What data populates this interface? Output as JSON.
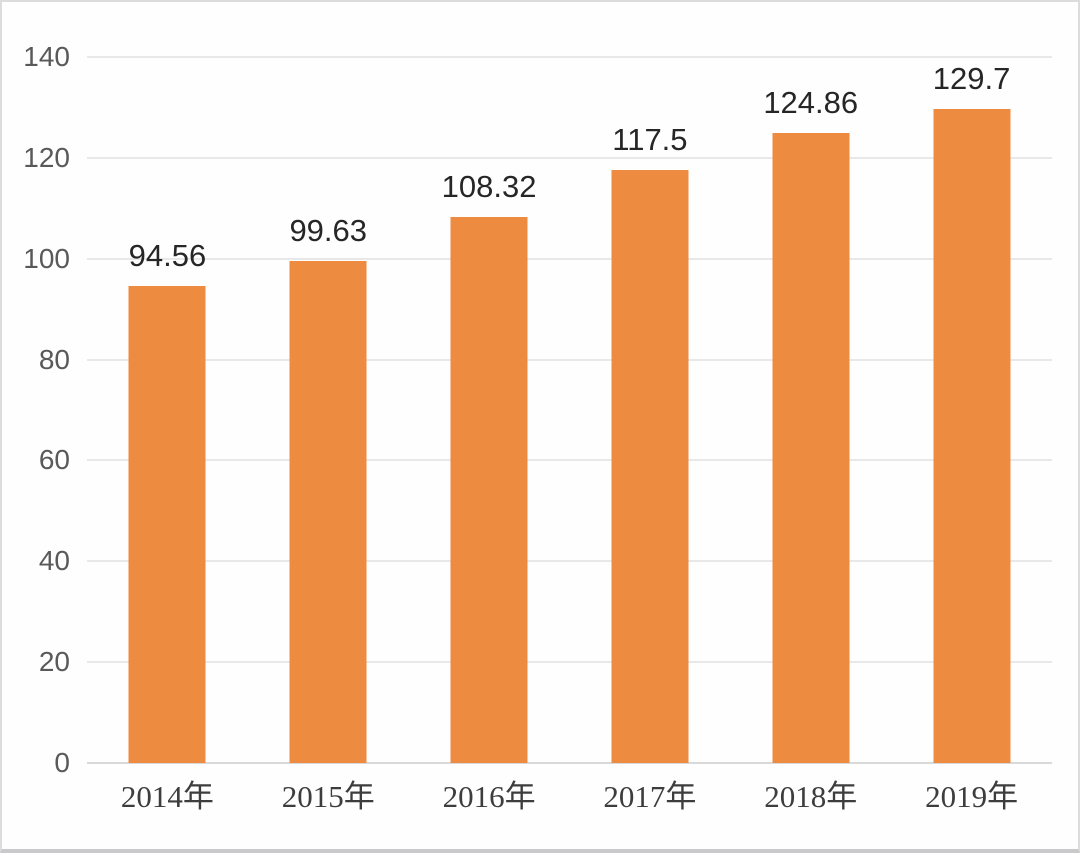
{
  "chart_data": {
    "type": "bar",
    "title": "",
    "xlabel": "",
    "ylabel": "",
    "categories": [
      "2014年",
      "2015年",
      "2016年",
      "2017年",
      "2018年",
      "2019年"
    ],
    "values": [
      94.56,
      99.63,
      108.32,
      117.5,
      124.86,
      129.7
    ],
    "value_labels": [
      "94.56",
      "99.63",
      "108.32",
      "117.5",
      "124.86",
      "129.7"
    ],
    "yticks": [
      "0",
      "20",
      "40",
      "60",
      "80",
      "100",
      "120",
      "140"
    ],
    "ytick_values": [
      0,
      20,
      40,
      60,
      80,
      100,
      120,
      140
    ],
    "ylim": [
      0,
      140
    ],
    "grid": "horizontal",
    "legend": "none",
    "colors": {
      "bar": "#ed8b40",
      "gridline": "#e8e8e8",
      "axis_line": "#d9d9d9",
      "ytick_label": "#595959",
      "value_label": "#262626",
      "xtick_label": "#3d3d3d",
      "frame_border": "#dcdcdc",
      "background": "#fefefe"
    }
  }
}
